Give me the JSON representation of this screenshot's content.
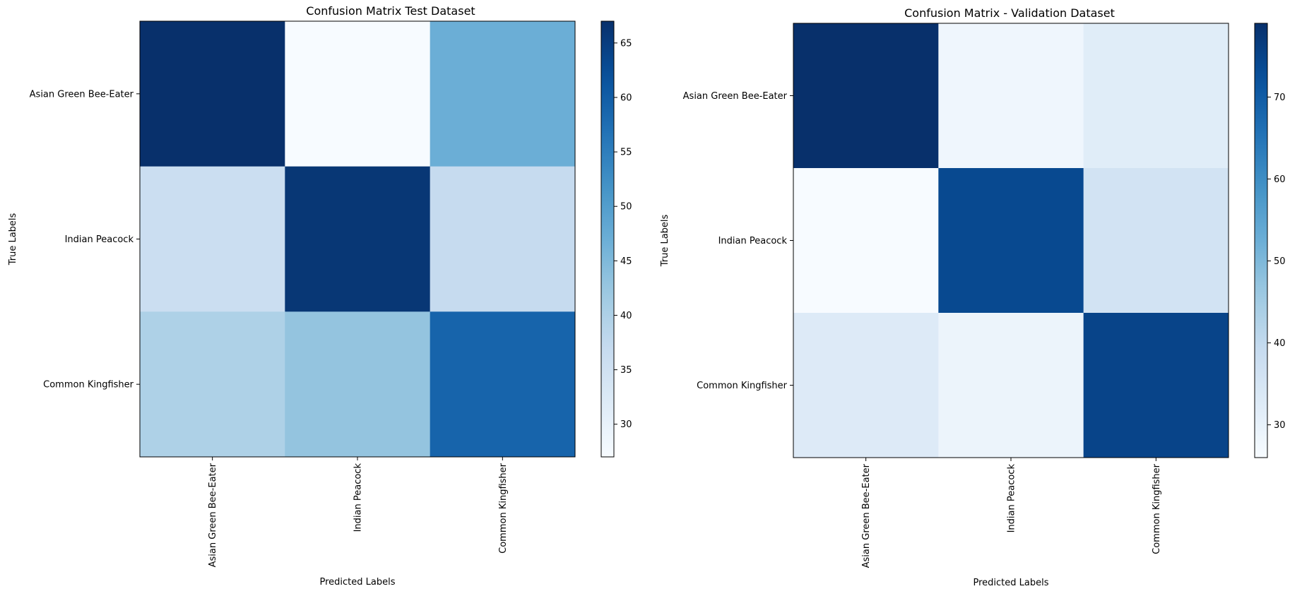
{
  "chart_data": [
    {
      "type": "heatmap",
      "title": "Confusion Matrix Test Dataset",
      "xlabel": "Predicted Labels",
      "ylabel": "True Labels",
      "x_categories": [
        "Asian Green Bee-Eater",
        "Indian Peacock",
        "Common Kingfisher"
      ],
      "y_categories": [
        "Asian Green Bee-Eater",
        "Indian Peacock",
        "Common Kingfisher"
      ],
      "values": [
        [
          67,
          27,
          47
        ],
        [
          36,
          66,
          37
        ],
        [
          40,
          43,
          59
        ]
      ],
      "colormap": "Blues",
      "colorbar": {
        "min": 27,
        "max": 67,
        "ticks": [
          30,
          35,
          40,
          45,
          50,
          55,
          60,
          65
        ]
      }
    },
    {
      "type": "heatmap",
      "title": "Confusion Matrix - Validation Dataset",
      "xlabel": "Predicted Labels",
      "ylabel": "True Labels",
      "x_categories": [
        "Asian Green Bee-Eater",
        "Indian Peacock",
        "Common Kingfisher"
      ],
      "y_categories": [
        "Asian Green Bee-Eater",
        "Indian Peacock",
        "Common Kingfisher"
      ],
      "values": [
        [
          79,
          28,
          32
        ],
        [
          26,
          74,
          36
        ],
        [
          33,
          29,
          75
        ]
      ],
      "colormap": "Blues",
      "colorbar": {
        "min": 26,
        "max": 79,
        "ticks": [
          30,
          40,
          50,
          60,
          70
        ]
      }
    }
  ]
}
